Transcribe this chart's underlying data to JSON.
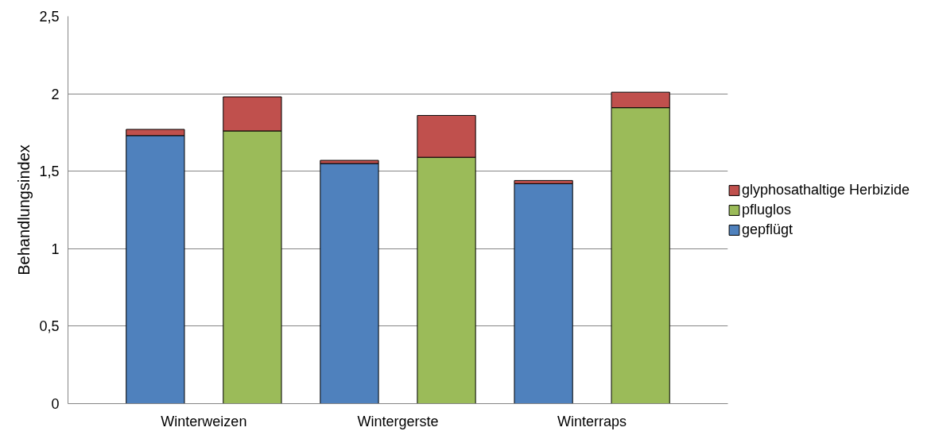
{
  "chart_data": {
    "type": "bar",
    "stacked": true,
    "ylabel": "Behandlungsindex",
    "categories": [
      "Winterweizen",
      null,
      "Wintergerste",
      null,
      "Winterraps",
      null
    ],
    "series": [
      {
        "name": "gepflügt",
        "color": "#4f81bd",
        "values": [
          1.73,
          null,
          1.55,
          null,
          1.42,
          null
        ]
      },
      {
        "name": "pfluglos",
        "color": "#9bbb59",
        "values": [
          null,
          1.76,
          null,
          1.59,
          null,
          1.91
        ]
      },
      {
        "name": "glyphosathaltige Herbizide",
        "color": "#c0504d",
        "values": [
          0.04,
          0.22,
          0.02,
          0.27,
          0.02,
          0.1
        ]
      }
    ],
    "ylim": [
      0,
      2.5
    ],
    "yticks": [
      0,
      {
        "value": 0.5,
        "label": "0,5"
      },
      1,
      {
        "value": 1.5,
        "label": "1,5"
      },
      2,
      {
        "value": 2.5,
        "label": "2,5"
      }
    ],
    "grid": "y",
    "legend": "right"
  }
}
